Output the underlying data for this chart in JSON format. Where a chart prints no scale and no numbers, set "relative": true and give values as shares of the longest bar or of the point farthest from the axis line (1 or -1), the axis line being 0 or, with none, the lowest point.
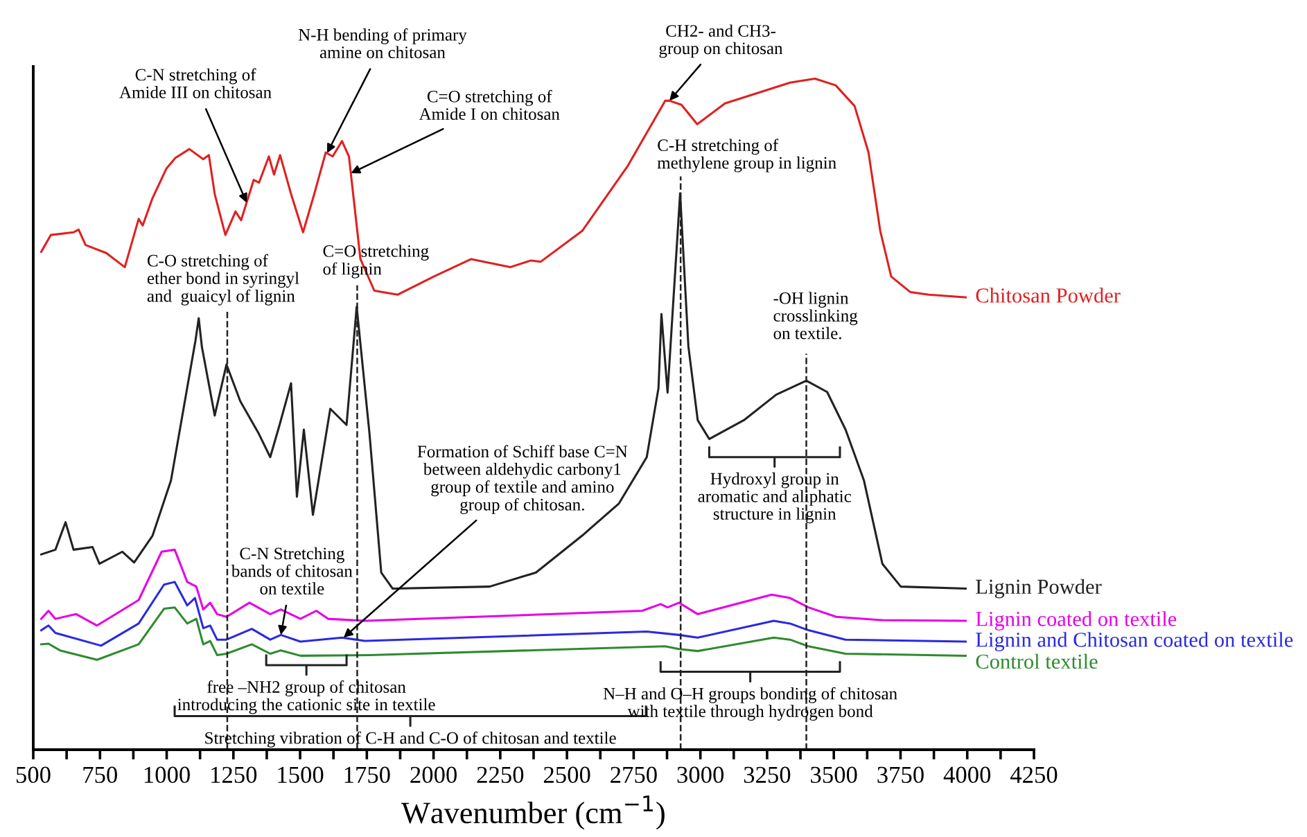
{
  "chart_data": {
    "type": "line",
    "relative": true,
    "xlabel": "Wavenumber (cm$^{−1}$)",
    "xlim": [
      500,
      4250
    ],
    "xticks": [
      500,
      {
        "value": 625,
        "label": null
      },
      750,
      {
        "value": 875,
        "label": null
      },
      1000,
      {
        "value": 1125,
        "label": null
      },
      1250,
      {
        "value": 1375,
        "label": null
      },
      1500,
      {
        "value": 1625,
        "label": null
      },
      1750,
      {
        "value": 1875,
        "label": null
      },
      2000,
      {
        "value": 2125,
        "label": null
      },
      2250,
      {
        "value": 2375,
        "label": null
      },
      2500,
      {
        "value": 2625,
        "label": null
      },
      2750,
      {
        "value": 2875,
        "label": null
      },
      3000,
      {
        "value": 3125,
        "label": null
      },
      3250,
      {
        "value": 3375,
        "label": null
      },
      3500,
      {
        "value": 3625,
        "label": null
      },
      3750,
      {
        "value": 3875,
        "label": null
      },
      4000,
      {
        "value": 4125,
        "label": null
      },
      4250
    ],
    "grid": false,
    "legend": false,
    "series": [
      {
        "name": "Chitosan Powder",
        "color": "#e02020",
        "x": [
          530,
          566,
          651,
          670,
          696,
          774,
          843,
          895,
          910,
          947,
          999,
          1033,
          1085,
          1137,
          1158,
          1180,
          1220,
          1258,
          1279,
          1326,
          1346,
          1383,
          1402,
          1425,
          1466,
          1511,
          1553,
          1596,
          1622,
          1657,
          1683,
          1726,
          1778,
          1865,
          2001,
          2141,
          2287,
          2365,
          2401,
          2557,
          2728,
          2868,
          2884,
          2929,
          2988,
          3092,
          3336,
          3429,
          3507,
          3578,
          3630,
          3674,
          3715,
          3786,
          3855,
          3994
        ],
        "values": [
          0.742,
          0.767,
          0.771,
          0.775,
          0.752,
          0.74,
          0.719,
          0.791,
          0.781,
          0.822,
          0.866,
          0.882,
          0.895,
          0.88,
          0.886,
          0.828,
          0.767,
          0.802,
          0.789,
          0.849,
          0.845,
          0.884,
          0.857,
          0.886,
          0.828,
          0.771,
          0.828,
          0.89,
          0.884,
          0.907,
          0.884,
          0.731,
          0.684,
          0.678,
          0.705,
          0.731,
          0.719,
          0.729,
          0.727,
          0.773,
          0.87,
          0.967,
          0.967,
          0.961,
          0.932,
          0.963,
          0.994,
          1.0,
          0.99,
          0.959,
          0.89,
          0.773,
          0.705,
          0.682,
          0.678,
          0.674
        ]
      },
      {
        "name": "Lignin Powder",
        "color": "#222222",
        "x": [
          530,
          583,
          621,
          651,
          722,
          748,
          834,
          878,
          947,
          1016,
          1108,
          1120,
          1132,
          1180,
          1224,
          1276,
          1345,
          1388,
          1423,
          1466,
          1488,
          1514,
          1548,
          1613,
          1674,
          1712,
          1760,
          1804,
          1847,
          2210,
          2384,
          2557,
          2695,
          2799,
          2843,
          2854,
          2877,
          2924,
          2955,
          2990,
          3033,
          3163,
          3284,
          3397,
          3475,
          3544,
          3613,
          3682,
          3751,
          3994
        ],
        "values": [
          0.291,
          0.298,
          0.339,
          0.298,
          0.302,
          0.277,
          0.295,
          0.279,
          0.319,
          0.401,
          0.61,
          0.643,
          0.6,
          0.498,
          0.574,
          0.519,
          0.471,
          0.436,
          0.484,
          0.546,
          0.377,
          0.477,
          0.35,
          0.508,
          0.484,
          0.66,
          0.471,
          0.264,
          0.24,
          0.243,
          0.264,
          0.319,
          0.367,
          0.436,
          0.539,
          0.649,
          0.532,
          0.829,
          0.601,
          0.491,
          0.463,
          0.491,
          0.529,
          0.55,
          0.533,
          0.477,
          0.401,
          0.277,
          0.243,
          0.24
        ]
      },
      {
        "name": "Lignin coated on textile",
        "color": "#e600e6",
        "x": [
          530,
          557,
          583,
          661,
          739,
          895,
          981,
          1030,
          1077,
          1111,
          1137,
          1163,
          1189,
          1224,
          1310,
          1388,
          1428,
          1501,
          1561,
          1605,
          1743,
          2782,
          2851,
          2877,
          2920,
          2990,
          3267,
          3336,
          3405,
          3509,
          3682,
          3994
        ],
        "values": [
          0.195,
          0.207,
          0.195,
          0.202,
          0.185,
          0.223,
          0.295,
          0.298,
          0.25,
          0.243,
          0.209,
          0.219,
          0.202,
          0.198,
          0.219,
          0.202,
          0.209,
          0.195,
          0.207,
          0.195,
          0.192,
          0.207,
          0.217,
          0.212,
          0.219,
          0.202,
          0.231,
          0.226,
          0.212,
          0.198,
          0.193,
          0.192
        ]
      },
      {
        "name": "Lignin and Chitosan coated on textile",
        "color": "#2a2ae0",
        "x": [
          530,
          557,
          583,
          754,
          895,
          990,
          1030,
          1077,
          1106,
          1137,
          1163,
          1189,
          1224,
          1319,
          1388,
          1428,
          1501,
          1657,
          1743,
          2799,
          2920,
          2990,
          3275,
          3336,
          3405,
          3544,
          3994
        ],
        "values": [
          0.178,
          0.185,
          0.174,
          0.155,
          0.188,
          0.246,
          0.25,
          0.215,
          0.226,
          0.181,
          0.185,
          0.164,
          0.164,
          0.18,
          0.164,
          0.171,
          0.161,
          0.167,
          0.162,
          0.176,
          0.171,
          0.167,
          0.192,
          0.188,
          0.178,
          0.164,
          0.161
        ]
      },
      {
        "name": "Control textile",
        "color": "#2e8b2e",
        "x": [
          530,
          557,
          600,
          739,
          895,
          990,
          1030,
          1077,
          1111,
          1137,
          1163,
          1189,
          1224,
          1319,
          1388,
          1428,
          1501,
          1760,
          2868,
          2920,
          2990,
          3275,
          3336,
          3405,
          3544,
          3994
        ],
        "values": [
          0.157,
          0.158,
          0.148,
          0.134,
          0.157,
          0.21,
          0.212,
          0.188,
          0.195,
          0.157,
          0.162,
          0.141,
          0.143,
          0.157,
          0.143,
          0.148,
          0.14,
          0.141,
          0.154,
          0.15,
          0.147,
          0.167,
          0.164,
          0.154,
          0.143,
          0.14
        ]
      }
    ],
    "ref_lines": [
      {
        "axis": "x",
        "value": 1227,
        "label": "C-O stretching of\nether bond in syringyl\nand  guaicyl of lignin",
        "color": "#222222",
        "line_style": "dashed"
      },
      {
        "axis": "x",
        "value": 1714,
        "label": "C=O stretching\nof lignin",
        "color": "#222222",
        "line_style": "dashed"
      },
      {
        "axis": "x",
        "value": 2926,
        "label": "C-H stretching of\nmethylene group in lignin",
        "color": "#222222",
        "line_style": "dashed"
      },
      {
        "axis": "x",
        "value": 3397,
        "label": "-OH lignin\ncrosslinking\non textile.",
        "color": "#222222",
        "line_style": "dashed"
      }
    ],
    "annotations": [
      {
        "text": "C-N stretching of\nAmide III on chitosan",
        "x": 1300,
        "y": 0.815
      },
      {
        "text": "N-H bending of primary\namine on chitosan",
        "x": 1601,
        "y": 0.889
      },
      {
        "text": "C=O stretching of\nAmide I on chitosan",
        "x": 1690,
        "y": 0.859
      },
      {
        "text": "CH2- and CH3-\ngroup on chitosan",
        "x": 2884,
        "y": 0.967
      },
      {
        "text": "Formation of Schiff base C=N\nbetween aldehydic carbony1\ngroup of textile and amino\ngroup of chitosan.",
        "x": 1663,
        "y": 0.167
      },
      {
        "text": "C-N Stretching\nbands of chitosan\non textile",
        "x": 1428,
        "y": 0.171
      },
      "free –NH2 group of chitosan\nintroducing the cationic site in textile",
      "Stretching vibration of C-H and C-O of chitosan and textile",
      "Hydroxyl group in\naromatic and aliphatic\nstructure in lignin",
      "N–H and O–H groups bonding of chitosan\nwith textile through hydrogen bond"
    ]
  }
}
